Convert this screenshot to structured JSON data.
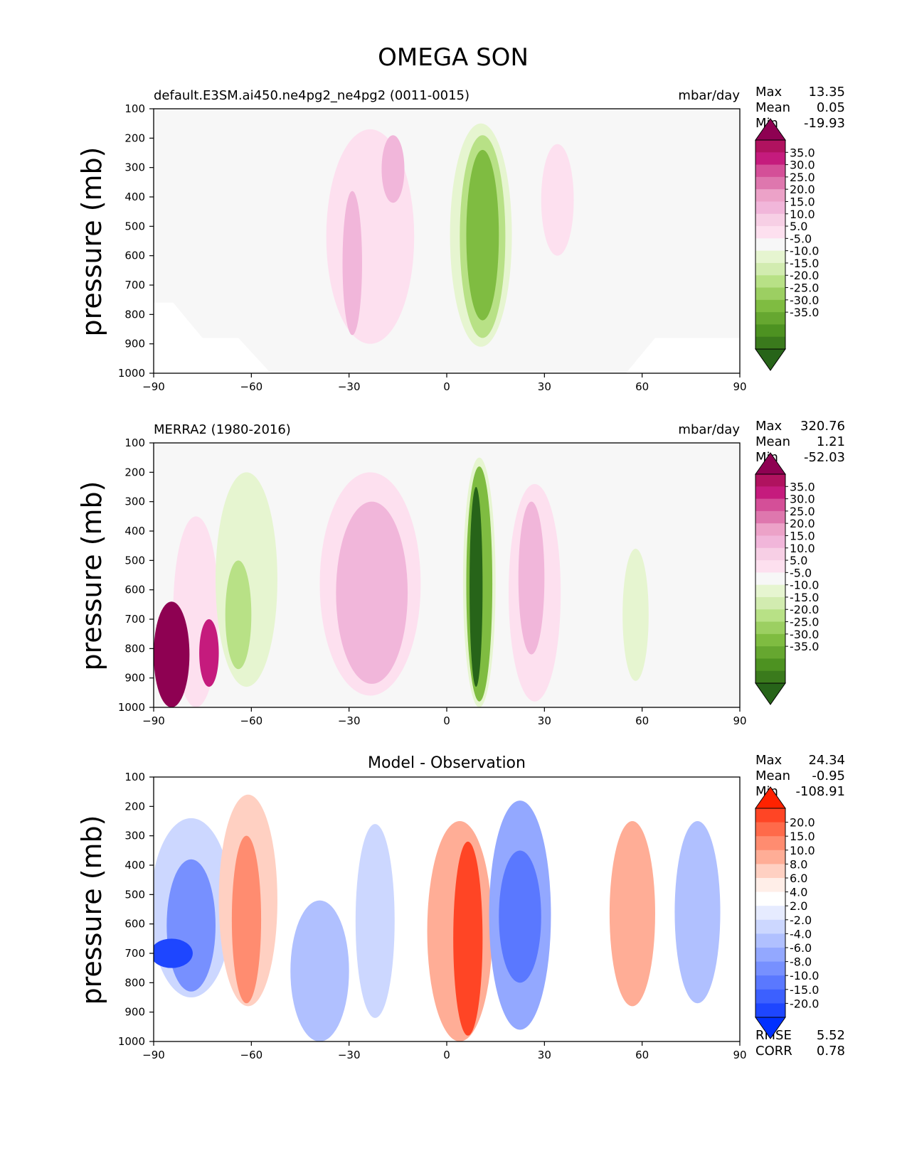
{
  "figure_title": "OMEGA SON",
  "colors": {
    "omega_levels": [
      "#8e0152",
      "#c51b7d",
      "#de77ae",
      "#f1b6da",
      "#fde0ef",
      "#f7f7f7",
      "#e6f5d0",
      "#b8e186",
      "#7fbc41",
      "#4d9221",
      "#276419"
    ],
    "omega_scale": [
      "#8e0152",
      "#b0125f",
      "#c51b7d",
      "#d44f98",
      "#de77ae",
      "#eca2c8",
      "#f1b6da",
      "#f7cfe5",
      "#fde0ef",
      "#f7f7f7",
      "#e6f5d0",
      "#d2ecb0",
      "#b8e186",
      "#9ccf62",
      "#7fbc41",
      "#66a730",
      "#4d9221",
      "#3a7a1c",
      "#276419"
    ],
    "diff_scale": [
      "#ff2200",
      "#ff4525",
      "#ff6a4a",
      "#ff8c70",
      "#ffad96",
      "#ffd0c2",
      "#ffeee8",
      "#ffffff",
      "#e6ebff",
      "#ccd7ff",
      "#b0c0ff",
      "#93a8ff",
      "#7790ff",
      "#5a78ff",
      "#3c60ff",
      "#1e46ff",
      "#0030ff"
    ],
    "background": "#f7f7f7"
  },
  "chart_data": [
    {
      "type": "contour",
      "panel": "test",
      "title_left": "default.E3SM.ai450.ne4pg2_ne4pg2 (0011-0015)",
      "title_right": "mbar/day",
      "stats": [
        {
          "label": "Max",
          "value": "13.35"
        },
        {
          "label": "Mean",
          "value": "0.05"
        },
        {
          "label": "Min",
          "value": "-19.93"
        }
      ],
      "ylabel": "pressure (mb)",
      "xticks": [
        "−90",
        "−60",
        "−30",
        "0",
        "30",
        "60",
        "90"
      ],
      "yticks": [
        "100",
        "200",
        "300",
        "400",
        "500",
        "600",
        "700",
        "800",
        "900",
        "1000"
      ],
      "xlim": [
        -90,
        90
      ],
      "ylim": [
        1000,
        100
      ],
      "colorbar_labels": [
        "35.0",
        "30.0",
        "25.0",
        "20.0",
        "15.0",
        "10.0",
        "5.0",
        "-5.0",
        "-10.0",
        "-15.0",
        "-20.0",
        "-25.0",
        "-30.0",
        "-35.0"
      ],
      "features": [
        {
          "lat_min": -37,
          "lat_max": -10,
          "p_top": 170,
          "p_bottom": 900,
          "level": 4,
          "name": "subsidence-south"
        },
        {
          "lat_min": -32,
          "lat_max": -26,
          "p_top": 380,
          "p_bottom": 870,
          "level": 3,
          "name": "subsidence-south-core"
        },
        {
          "lat_min": -20,
          "lat_max": -13,
          "p_top": 190,
          "p_bottom": 420,
          "level": 3,
          "name": "subsidence-south-upper"
        },
        {
          "lat_min": 1,
          "lat_max": 20,
          "p_top": 150,
          "p_bottom": 910,
          "level": 6,
          "name": "ascent-itcz"
        },
        {
          "lat_min": 4,
          "lat_max": 18,
          "p_top": 190,
          "p_bottom": 880,
          "level": 7,
          "name": "ascent-itcz-mid"
        },
        {
          "lat_min": 6,
          "lat_max": 16,
          "p_top": 240,
          "p_bottom": 820,
          "level": 8,
          "name": "ascent-itcz-core"
        },
        {
          "lat_min": 29,
          "lat_max": 39,
          "p_top": 220,
          "p_bottom": 600,
          "level": 4,
          "name": "subsidence-north"
        }
      ]
    },
    {
      "type": "contour",
      "panel": "reference",
      "title_left": "MERRA2 (1980-2016)",
      "title_right": "mbar/day",
      "stats": [
        {
          "label": "Max",
          "value": "320.76"
        },
        {
          "label": "Mean",
          "value": "1.21"
        },
        {
          "label": "Min",
          "value": "-52.03"
        }
      ],
      "ylabel": "pressure (mb)",
      "xticks": [
        "−90",
        "−60",
        "−30",
        "0",
        "30",
        "60",
        "90"
      ],
      "yticks": [
        "100",
        "200",
        "300",
        "400",
        "500",
        "600",
        "700",
        "800",
        "900",
        "1000"
      ],
      "xlim": [
        -90,
        90
      ],
      "ylim": [
        1000,
        100
      ],
      "colorbar_labels": [
        "35.0",
        "30.0",
        "25.0",
        "20.0",
        "15.0",
        "10.0",
        "5.0",
        "-5.0",
        "-10.0",
        "-15.0",
        "-20.0",
        "-25.0",
        "-30.0",
        "-35.0"
      ],
      "features": [
        {
          "lat_min": -84,
          "lat_max": -70,
          "p_top": 350,
          "p_bottom": 1000,
          "level": 4,
          "name": "antarctic-pink"
        },
        {
          "lat_min": -90,
          "lat_max": -79,
          "p_top": 640,
          "p_bottom": 1000,
          "level": 0,
          "name": "antarctic-strong"
        },
        {
          "lat_min": -76,
          "lat_max": -70,
          "p_top": 700,
          "p_bottom": 930,
          "level": 1,
          "name": "antarctic-streak"
        },
        {
          "lat_min": -71,
          "lat_max": -52,
          "p_top": 200,
          "p_bottom": 930,
          "level": 6,
          "name": "ascent-south-polar-front"
        },
        {
          "lat_min": -68,
          "lat_max": -60,
          "p_top": 500,
          "p_bottom": 870,
          "level": 7,
          "name": "ascent-south-core"
        },
        {
          "lat_min": -39,
          "lat_max": -8,
          "p_top": 200,
          "p_bottom": 960,
          "level": 4,
          "name": "subsidence-south"
        },
        {
          "lat_min": -34,
          "lat_max": -12,
          "p_top": 300,
          "p_bottom": 920,
          "level": 3,
          "name": "subsidence-south-core"
        },
        {
          "lat_min": 5,
          "lat_max": 15,
          "p_top": 150,
          "p_bottom": 1000,
          "level": 6,
          "name": "ascent-itcz-outer"
        },
        {
          "lat_min": 6,
          "lat_max": 14,
          "p_top": 180,
          "p_bottom": 980,
          "level": 8,
          "name": "ascent-itcz-mid"
        },
        {
          "lat_min": 7,
          "lat_max": 11,
          "p_top": 250,
          "p_bottom": 930,
          "level": 10,
          "name": "ascent-itcz-core"
        },
        {
          "lat_min": 19,
          "lat_max": 35,
          "p_top": 240,
          "p_bottom": 980,
          "level": 4,
          "name": "subsidence-north"
        },
        {
          "lat_min": 22,
          "lat_max": 30,
          "p_top": 300,
          "p_bottom": 820,
          "level": 3,
          "name": "subsidence-north-core"
        },
        {
          "lat_min": 54,
          "lat_max": 62,
          "p_top": 460,
          "p_bottom": 910,
          "level": 6,
          "name": "ascent-north"
        }
      ]
    },
    {
      "type": "contour",
      "panel": "difference",
      "title_center": "Model - Observation",
      "stats": [
        {
          "label": "Max",
          "value": "24.34"
        },
        {
          "label": "Mean",
          "value": "-0.95"
        },
        {
          "label": "Min",
          "value": "-108.91"
        }
      ],
      "metrics": [
        {
          "label": "RMSE",
          "value": "5.52"
        },
        {
          "label": "CORR",
          "value": "0.78"
        }
      ],
      "ylabel": "pressure (mb)",
      "xticks": [
        "−90",
        "−60",
        "−30",
        "0",
        "30",
        "60",
        "90"
      ],
      "yticks": [
        "100",
        "200",
        "300",
        "400",
        "500",
        "600",
        "700",
        "800",
        "900",
        "1000"
      ],
      "xlim": [
        -90,
        90
      ],
      "ylim": [
        1000,
        100
      ],
      "colorbar_labels": [
        "20.0",
        "15.0",
        "10.0",
        "8.0",
        "6.0",
        "4.0",
        "2.0",
        "-2.0",
        "-4.0",
        "-6.0",
        "-8.0",
        "-10.0",
        "-15.0",
        "-20.0"
      ],
      "features": [
        {
          "lat_min": -91,
          "lat_max": -66,
          "p_top": 240,
          "p_bottom": 850,
          "level": 9,
          "name": "neg-south-polar"
        },
        {
          "lat_min": -86,
          "lat_max": -71,
          "p_top": 380,
          "p_bottom": 830,
          "level": 12,
          "name": "neg-south-polar-core"
        },
        {
          "lat_min": -91,
          "lat_max": -78,
          "p_top": 650,
          "p_bottom": 750,
          "level": 15,
          "name": "neg-south-polar-strong"
        },
        {
          "lat_min": -70,
          "lat_max": -52,
          "p_top": 160,
          "p_bottom": 880,
          "level": 5,
          "name": "pos-south"
        },
        {
          "lat_min": -66,
          "lat_max": -57,
          "p_top": 300,
          "p_bottom": 870,
          "level": 3,
          "name": "pos-south-core"
        },
        {
          "lat_min": -48,
          "lat_max": -30,
          "p_top": 520,
          "p_bottom": 1000,
          "level": 10,
          "name": "neg-south-mid"
        },
        {
          "lat_min": -28,
          "lat_max": -16,
          "p_top": 260,
          "p_bottom": 920,
          "level": 9,
          "name": "neg-south-subtropics"
        },
        {
          "lat_min": -6,
          "lat_max": 14,
          "p_top": 250,
          "p_bottom": 1000,
          "level": 4,
          "name": "pos-itcz"
        },
        {
          "lat_min": 2,
          "lat_max": 11,
          "p_top": 320,
          "p_bottom": 980,
          "level": 1,
          "name": "pos-itcz-core"
        },
        {
          "lat_min": 13,
          "lat_max": 32,
          "p_top": 180,
          "p_bottom": 960,
          "level": 11,
          "name": "neg-north"
        },
        {
          "lat_min": 16,
          "lat_max": 29,
          "p_top": 350,
          "p_bottom": 800,
          "level": 13,
          "name": "neg-north-core"
        },
        {
          "lat_min": 50,
          "lat_max": 64,
          "p_top": 250,
          "p_bottom": 880,
          "level": 4,
          "name": "pos-north"
        },
        {
          "lat_min": 70,
          "lat_max": 84,
          "p_top": 250,
          "p_bottom": 870,
          "level": 10,
          "name": "neg-north-polar"
        }
      ]
    }
  ]
}
